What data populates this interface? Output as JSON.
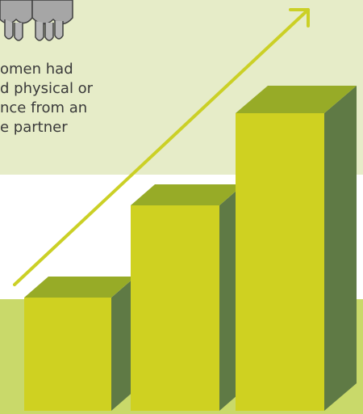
{
  "caption": {
    "lines": [
      "omen had",
      "d physical or",
      "nce from an",
      "e partner"
    ]
  },
  "colors": {
    "panel_light": "#e6ecc8",
    "panel_green": "#c9d96a",
    "bar_front": "#cfd121",
    "bar_top": "#97ab27",
    "bar_side": "#5f7a45",
    "arrow": "#cbd026",
    "icon_fill": "#a6a6a6",
    "text": "#3a3a3a"
  },
  "icons": [
    "women-figures-icon",
    "trend-arrow-icon"
  ],
  "bars": [
    {
      "name": "bar-short",
      "relative_height": 0.38
    },
    {
      "name": "bar-medium",
      "relative_height": 0.69
    },
    {
      "name": "bar-tall",
      "relative_height": 1.0
    }
  ]
}
